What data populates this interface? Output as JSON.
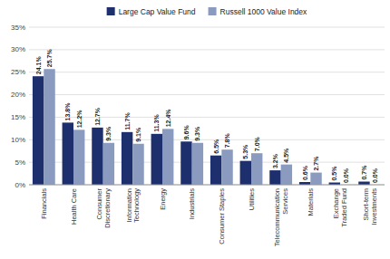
{
  "chart_data": {
    "type": "bar",
    "categories": [
      "Financials",
      "Health Care",
      "Consumer\nDiscretionary",
      "Information\nTechnology",
      "Energy",
      "Industrials",
      "Consumer Staples",
      "Utilities",
      "Telecommunication\nServices",
      "Materials",
      "Exchange\nTraded Fund",
      "Short-term\nInvestments"
    ],
    "series": [
      {
        "name": "Large Cap Value Fund",
        "color": "#1e2f6e",
        "values": [
          24.1,
          13.8,
          12.7,
          11.7,
          11.3,
          9.6,
          6.5,
          5.3,
          3.2,
          0.6,
          0.5,
          0.7
        ],
        "value_labels": [
          "24.1%",
          "13.8%",
          "12.7%",
          "11.7%",
          "11.3%",
          "9.6%",
          "6.5%",
          "5.3%",
          "3.2%",
          "0.6%",
          "0.5%",
          "0.7%"
        ]
      },
      {
        "name": "Russell 1000 Value Index",
        "color": "#8a9bbf",
        "values": [
          25.7,
          12.2,
          9.3,
          9.1,
          12.4,
          9.3,
          7.8,
          7.0,
          4.5,
          2.7,
          0.0,
          0.0
        ],
        "value_labels": [
          "25.7%",
          "12.2%",
          "9.3%",
          "9.1%",
          "12.4%",
          "9.3%",
          "7.8%",
          "7.0%",
          "4.5%",
          "2.7%",
          "0.0%",
          "0.0%"
        ]
      }
    ],
    "ylim": [
      0,
      35
    ],
    "yticks": [
      {
        "value": 0,
        "label": "0%"
      },
      {
        "value": 5,
        "label": "5%"
      },
      {
        "value": 10,
        "label": "10%"
      },
      {
        "value": 15,
        "label": "15%"
      },
      {
        "value": 20,
        "label": "20%"
      },
      {
        "value": 25,
        "label": "25%"
      },
      {
        "value": 30,
        "label": "30%"
      },
      {
        "value": 35,
        "label": "35%"
      }
    ],
    "grid": true,
    "legend": "top",
    "data_labels": true
  }
}
